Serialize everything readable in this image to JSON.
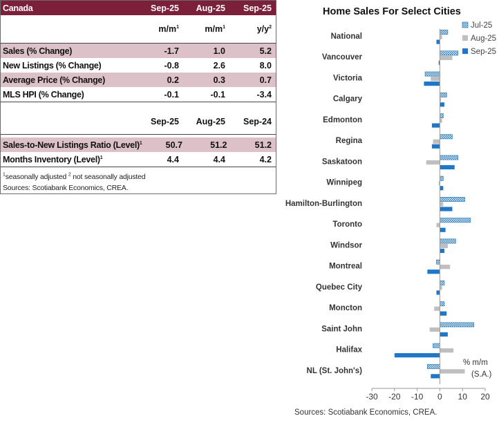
{
  "table": {
    "header": {
      "label": "Canada",
      "cols": [
        "Sep-25",
        "Aug-25",
        "Sep-25"
      ]
    },
    "units": [
      "m/m",
      "m/m",
      "y/y"
    ],
    "units_sup": [
      "1",
      "1",
      "2"
    ],
    "rows": [
      {
        "label": "Sales (% Change)",
        "values": [
          "-1.7",
          "1.0",
          "5.2"
        ]
      },
      {
        "label": "New Listings (% Change)",
        "values": [
          "-0.8",
          "2.6",
          "8.0"
        ]
      },
      {
        "label": "Average Price (% Change)",
        "values": [
          "0.2",
          "0.3",
          "0.7"
        ]
      },
      {
        "label": "MLS HPI (% Change)",
        "values": [
          "-0.1",
          "-0.1",
          "-3.4"
        ]
      }
    ],
    "section2_cols": [
      "Sep-25",
      "Aug-25",
      "Sep-24"
    ],
    "rows2": [
      {
        "label": "Sales-to-New Listings Ratio (Level)",
        "sup": "1",
        "values": [
          "50.7",
          "51.2",
          "51.2"
        ]
      },
      {
        "label": "Months Inventory (Level)",
        "sup": "1",
        "values": [
          "4.4",
          "4.4",
          "4.2"
        ]
      }
    ],
    "footnote1_sup": "1",
    "footnote1": "seasonally adjusted",
    "footnote2_sup": "2",
    "footnote2": "not seasonally adjusted",
    "source": "Sources: Scotiabank Economics, CREA."
  },
  "chart_data": {
    "type": "bar",
    "orientation": "horizontal",
    "title": "Home Sales For Select Cities",
    "unit_label": [
      "% m/m",
      "(S.A.)"
    ],
    "categories": [
      "National",
      "Vancouver",
      "Victoria",
      "Calgary",
      "Edmonton",
      "Regina",
      "Saskatoon",
      "Winnipeg",
      "Hamilton-Burlington",
      "Toronto",
      "Windsor",
      "Montreal",
      "Quebec City",
      "Moncton",
      "Saint John",
      "Halifax",
      "NL (St. John's)"
    ],
    "series": [
      {
        "name": "Jul-25",
        "color": "#2a7dbf",
        "pattern": "dots",
        "values": [
          3.5,
          8,
          -6.5,
          3,
          1.5,
          5.5,
          8,
          1.5,
          11,
          13.5,
          7,
          -1.5,
          2,
          2,
          15,
          -3,
          -5.5
        ]
      },
      {
        "name": "Aug-25",
        "color": "#bfbfbf",
        "pattern": "solid",
        "values": [
          1,
          5.5,
          -4,
          0.5,
          1,
          -3,
          -6,
          -0.5,
          1.5,
          -1.5,
          3.5,
          4.5,
          1,
          -2.5,
          -4.5,
          6,
          11
        ]
      },
      {
        "name": "Sep-25",
        "color": "#1f77c9",
        "pattern": "solid",
        "values": [
          -1.5,
          -0.5,
          -7,
          2,
          -3.5,
          -3.5,
          6.5,
          1.5,
          5.5,
          2.5,
          2,
          -5.5,
          -1.5,
          3,
          3.5,
          -20,
          -4
        ]
      }
    ],
    "xlim": [
      -30,
      20
    ],
    "xticks": [
      -30,
      -20,
      -10,
      0,
      10,
      20
    ],
    "legend_position": "top-right",
    "source": "Sources: Scotiabank Economics, CREA."
  }
}
